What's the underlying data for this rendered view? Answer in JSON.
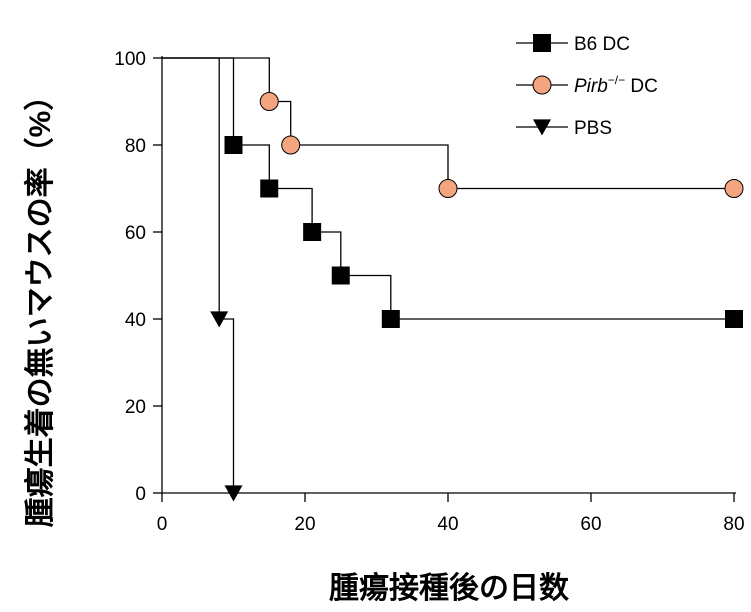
{
  "chart_data": {
    "type": "line",
    "title": "",
    "xlabel": "腫瘍接種後の日数",
    "ylabel": "腫瘍生着の無いマウスの率（%）",
    "xlim": [
      0,
      80
    ],
    "ylim": [
      0,
      100
    ],
    "xticks": [
      0,
      20,
      40,
      60,
      80
    ],
    "yticks": [
      0,
      20,
      40,
      60,
      80,
      100
    ],
    "step": true,
    "legend_position": "top-right",
    "series": [
      {
        "name": "B6 DC",
        "marker": "square",
        "color": "#000000",
        "line": [
          [
            0,
            100
          ],
          [
            10,
            100
          ],
          [
            10,
            80
          ],
          [
            15,
            80
          ],
          [
            15,
            70
          ],
          [
            21,
            70
          ],
          [
            21,
            60
          ],
          [
            25,
            60
          ],
          [
            25,
            50
          ],
          [
            32,
            50
          ],
          [
            32,
            40
          ],
          [
            80,
            40
          ]
        ],
        "points": [
          [
            10,
            80
          ],
          [
            15,
            70
          ],
          [
            21,
            60
          ],
          [
            25,
            50
          ],
          [
            32,
            40
          ],
          [
            80,
            40
          ]
        ]
      },
      {
        "name": "Pirb−/− DC",
        "name_parts": {
          "italic": "Pirb",
          "sup": "−/−",
          "rest": "DC"
        },
        "marker": "circle",
        "color": "#F4A47E",
        "line": [
          [
            0,
            100
          ],
          [
            15,
            100
          ],
          [
            15,
            90
          ],
          [
            18,
            90
          ],
          [
            18,
            80
          ],
          [
            40,
            80
          ],
          [
            40,
            70
          ],
          [
            80,
            70
          ]
        ],
        "points": [
          [
            15,
            90
          ],
          [
            18,
            80
          ],
          [
            40,
            70
          ],
          [
            80,
            70
          ]
        ]
      },
      {
        "name": "PBS",
        "marker": "triangle-down",
        "color": "#000000",
        "line": [
          [
            0,
            100
          ],
          [
            8,
            100
          ],
          [
            8,
            40
          ],
          [
            10,
            40
          ],
          [
            10,
            0
          ]
        ],
        "points": [
          [
            8,
            40
          ],
          [
            10,
            0
          ]
        ]
      }
    ]
  }
}
